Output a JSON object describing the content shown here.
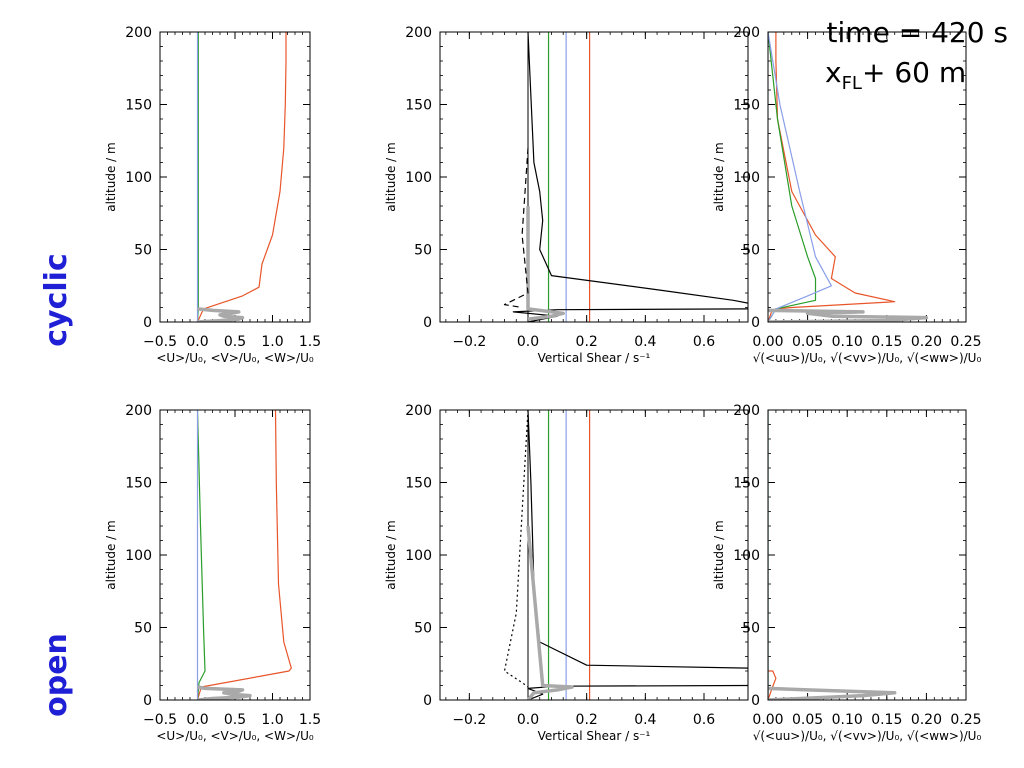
{
  "annotation": {
    "time": "time = 420 s",
    "pos_main": "x",
    "pos_sub": "FL",
    "pos_rest": "+ 60 m"
  },
  "row_labels": [
    "cyclic",
    "open"
  ],
  "colors": {
    "u": "#e8552a",
    "v": "#2a9d2a",
    "w": "#8a9ee8",
    "grey": "#a9a9a9",
    "black": "#000000"
  },
  "chart_data": [
    {
      "id": "cyclic-mean",
      "type": "line",
      "xlabel": "<U>/U₀, <V>/U₀, <W>/U₀",
      "ylabel": "altitude / m",
      "xlim": [
        -0.5,
        1.5
      ],
      "ylim": [
        0,
        200
      ],
      "xticks": [
        -0.5,
        0.0,
        0.5,
        1.0,
        1.5
      ],
      "xtick_labels": [
        "−0.5",
        "0.0",
        "0.5",
        "1.0",
        "1.5"
      ],
      "yticks": [
        0,
        50,
        100,
        150,
        200
      ],
      "ytick_labels": [
        "0",
        "50",
        "100",
        "150",
        "200"
      ],
      "series": [
        {
          "color": "#e8552a",
          "x": [
            0.0,
            0.08,
            0.6,
            0.82,
            0.86,
            1.0,
            1.1,
            1.15,
            1.17,
            1.18,
            1.18
          ],
          "y": [
            0,
            9,
            18,
            24,
            40,
            60,
            90,
            120,
            150,
            180,
            200
          ]
        },
        {
          "color": "#2a9d2a",
          "x": [
            0.0,
            0.01,
            0.01,
            0.01
          ],
          "y": [
            0,
            10,
            100,
            200
          ]
        },
        {
          "color": "#8a9ee8",
          "x": [
            0.0,
            0.0,
            0.0
          ],
          "y": [
            0,
            100,
            200
          ]
        },
        {
          "color": "#a9a9a9",
          "thick": true,
          "x": [
            0.0,
            0.3,
            0.55,
            0.6,
            0.35,
            0.3,
            0.45,
            0.55,
            0.2,
            0.0
          ],
          "y": [
            0,
            1,
            2,
            3,
            4,
            5,
            6,
            7,
            8,
            9
          ]
        }
      ]
    },
    {
      "id": "cyclic-shear",
      "type": "line",
      "xlabel": "Vertical Shear / s⁻¹",
      "ylabel": "altitude / m",
      "xlim": [
        -0.3,
        0.75
      ],
      "ylim": [
        0,
        200
      ],
      "xticks": [
        -0.2,
        0.0,
        0.2,
        0.4,
        0.6
      ],
      "xtick_labels": [
        "−0.2",
        "0.0",
        "0.2",
        "0.4",
        "0.6"
      ],
      "yticks": [
        0,
        50,
        100,
        150,
        200
      ],
      "ytick_labels": [
        "0",
        "50",
        "100",
        "150",
        "200"
      ],
      "vlines": [
        {
          "x": 0.07,
          "color": "#2a9d2a"
        },
        {
          "x": 0.13,
          "color": "#8a9ee8"
        },
        {
          "x": 0.21,
          "color": "#e8552a"
        }
      ],
      "series": [
        {
          "color": "#000000",
          "x": [
            0.0,
            0.02,
            0.04,
            0.05,
            0.04,
            0.08,
            0.45,
            0.7,
            0.75
          ],
          "y": [
            200,
            110,
            90,
            70,
            50,
            32,
            22,
            15,
            13
          ]
        },
        {
          "color": "#000000",
          "x": [
            0.75,
            0.1,
            -0.05,
            0.1,
            0.0
          ],
          "y": [
            9,
            8.5,
            7,
            4,
            0
          ]
        },
        {
          "color": "#a9a9a9",
          "thick": true,
          "x": [
            0.0,
            0.08,
            0.12,
            0.0,
            0.0
          ],
          "y": [
            2,
            4,
            6,
            9,
            80
          ]
        },
        {
          "color": "#000000",
          "dash": "6,4",
          "x": [
            0.0,
            -0.02,
            0.0,
            -0.08,
            -0.02
          ],
          "y": [
            120,
            60,
            20,
            12,
            10
          ]
        }
      ]
    },
    {
      "id": "cyclic-rms",
      "type": "line",
      "xlabel": "√(<uu>)/U₀,  √(<vv>)/U₀,  √(<ww>)/U₀",
      "ylabel": "altitude / m",
      "xlim": [
        0.0,
        0.25
      ],
      "ylim": [
        0,
        200
      ],
      "xticks": [
        0.0,
        0.05,
        0.1,
        0.15,
        0.2,
        0.25
      ],
      "xtick_labels": [
        "0.00",
        "0.05",
        "0.10",
        "0.15",
        "0.20",
        "0.25"
      ],
      "yticks": [
        0,
        50,
        100,
        150,
        200
      ],
      "ytick_labels": [
        "0",
        "50",
        "100",
        "150",
        "200"
      ],
      "series": [
        {
          "color": "#e8552a",
          "x": [
            0.0,
            0.005,
            0.01,
            0.03,
            0.16,
            0.11,
            0.08,
            0.085,
            0.06,
            0.03,
            0.012,
            0.01,
            0.01
          ],
          "y": [
            0,
            8,
            9,
            10,
            14,
            20,
            30,
            45,
            60,
            90,
            140,
            180,
            200
          ]
        },
        {
          "color": "#2a9d2a",
          "x": [
            0.0,
            0.01,
            0.06,
            0.06,
            0.05,
            0.03,
            0.012,
            0.0
          ],
          "y": [
            0,
            9,
            15,
            30,
            45,
            80,
            140,
            200
          ]
        },
        {
          "color": "#8a9ee8",
          "x": [
            0.0,
            0.01,
            0.05,
            0.08,
            0.06,
            0.04,
            0.015,
            0.0
          ],
          "y": [
            0,
            9,
            18,
            25,
            45,
            90,
            150,
            200
          ]
        },
        {
          "color": "#a9a9a9",
          "thick": true,
          "x": [
            0.0,
            0.15,
            0.2,
            0.08,
            0.05,
            0.12,
            0.0
          ],
          "y": [
            0,
            1,
            3,
            4,
            6,
            7,
            8
          ]
        }
      ]
    },
    {
      "id": "open-mean",
      "type": "line",
      "xlabel": "<U>/U₀, <V>/U₀, <W>/U₀",
      "ylabel": "altitude / m",
      "xlim": [
        -0.5,
        1.5
      ],
      "ylim": [
        0,
        200
      ],
      "xticks": [
        -0.5,
        0.0,
        0.5,
        1.0,
        1.5
      ],
      "xtick_labels": [
        "−0.5",
        "0.0",
        "0.5",
        "1.0",
        "1.5"
      ],
      "yticks": [
        0,
        50,
        100,
        150,
        200
      ],
      "ytick_labels": [
        "0",
        "50",
        "100",
        "150",
        "200"
      ],
      "series": [
        {
          "color": "#e8552a",
          "x": [
            0.0,
            0.05,
            0.9,
            1.22,
            1.25,
            1.15,
            1.08,
            1.05,
            1.04
          ],
          "y": [
            0,
            9,
            17,
            20,
            22,
            40,
            80,
            150,
            200
          ]
        },
        {
          "color": "#2a9d2a",
          "x": [
            0.0,
            0.02,
            0.1,
            0.08,
            0.04,
            0.0
          ],
          "y": [
            0,
            12,
            20,
            50,
            120,
            200
          ]
        },
        {
          "color": "#8a9ee8",
          "x": [
            0.0,
            0.0,
            0.0
          ],
          "y": [
            0,
            100,
            200
          ]
        },
        {
          "color": "#a9a9a9",
          "thick": true,
          "x": [
            0.0,
            0.2,
            0.55,
            0.7,
            0.45,
            0.35,
            0.55,
            0.6,
            0.1,
            0.0
          ],
          "y": [
            0,
            1,
            2,
            3,
            4,
            5,
            6,
            7,
            8,
            9
          ]
        }
      ]
    },
    {
      "id": "open-shear",
      "type": "line",
      "xlabel": "Vertical Shear / s⁻¹",
      "ylabel": "altitude / m",
      "xlim": [
        -0.3,
        0.75
      ],
      "ylim": [
        0,
        200
      ],
      "xticks": [
        -0.2,
        0.0,
        0.2,
        0.4,
        0.6
      ],
      "xtick_labels": [
        "−0.2",
        "0.0",
        "0.2",
        "0.4",
        "0.6"
      ],
      "yticks": [
        0,
        50,
        100,
        150,
        200
      ],
      "ytick_labels": [
        "0",
        "50",
        "100",
        "150",
        "200"
      ],
      "vlines": [
        {
          "x": 0.07,
          "color": "#2a9d2a"
        },
        {
          "x": 0.13,
          "color": "#8a9ee8"
        },
        {
          "x": 0.21,
          "color": "#e8552a"
        }
      ],
      "series": [
        {
          "color": "#000000",
          "x": [
            0.0,
            0.01,
            0.02,
            0.04,
            0.2,
            0.75
          ],
          "y": [
            200,
            150,
            80,
            40,
            24,
            22
          ]
        },
        {
          "color": "#000000",
          "x": [
            0.75,
            0.1,
            0.0,
            0.05,
            0.0
          ],
          "y": [
            10,
            9.5,
            8,
            4,
            0
          ]
        },
        {
          "color": "#a9a9a9",
          "thick": true,
          "x": [
            0.0,
            0.02,
            0.1,
            0.15,
            0.05,
            0.0
          ],
          "y": [
            0,
            5,
            7,
            9,
            10,
            120
          ]
        },
        {
          "color": "#000000",
          "dash": "2,3",
          "x": [
            0.0,
            -0.04,
            -0.08,
            -0.02,
            0.0
          ],
          "y": [
            200,
            60,
            20,
            12,
            9
          ]
        }
      ]
    },
    {
      "id": "open-rms",
      "type": "line",
      "xlabel": "√(<uu>)/U₀,  √(<vv>)/U₀,  √(<ww>)/U₀",
      "ylabel": "altitude / m",
      "xlim": [
        0.0,
        0.25
      ],
      "ylim": [
        0,
        200
      ],
      "xticks": [
        0.0,
        0.05,
        0.1,
        0.15,
        0.2,
        0.25
      ],
      "xtick_labels": [
        "0.00",
        "0.05",
        "0.10",
        "0.15",
        "0.20",
        "0.25"
      ],
      "yticks": [
        0,
        50,
        100,
        150,
        200
      ],
      "ytick_labels": [
        "0",
        "50",
        "100",
        "150",
        "200"
      ],
      "series": [
        {
          "color": "#e8552a",
          "x": [
            0.0,
            0.005,
            0.01,
            0.006,
            0.0
          ],
          "y": [
            0,
            8,
            15,
            20,
            20
          ]
        },
        {
          "color": "#2a9d2a",
          "x": [
            0.0,
            0.0,
            0.0
          ],
          "y": [
            0,
            100,
            200
          ]
        },
        {
          "color": "#8a9ee8",
          "x": [
            0.0,
            0.0
          ],
          "y": [
            0,
            200
          ]
        },
        {
          "color": "#a9a9a9",
          "thick": true,
          "x": [
            0.0,
            0.12,
            0.16,
            0.05,
            0.0
          ],
          "y": [
            0,
            3,
            5,
            7,
            8
          ]
        }
      ]
    }
  ]
}
